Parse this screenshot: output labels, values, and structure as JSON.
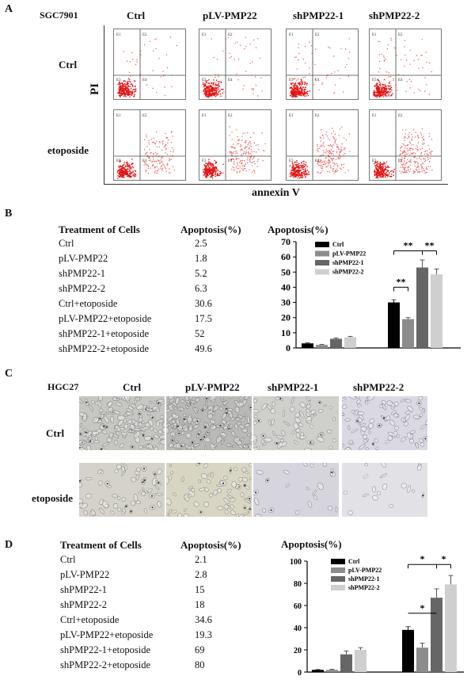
{
  "panelA": {
    "letter": "A",
    "cell_line": "SGC7901",
    "columns": [
      "Ctrl",
      "pLV-PMP22",
      "shPMP22-1",
      "shPMP22-2"
    ],
    "rows": [
      "Ctrl",
      "etoposide"
    ],
    "y_axis_label": "PI",
    "x_axis_label": "annexin V",
    "quadrant_labels": [
      "E1",
      "E2",
      "E3",
      "E4"
    ]
  },
  "panelB": {
    "letter": "B",
    "table_header": [
      "Treatment of Cells",
      "Apoptosis(%)"
    ],
    "table_rows": [
      [
        "Ctrl",
        "2.5"
      ],
      [
        "pLV-PMP22",
        "1.8"
      ],
      [
        "shPMP22-1",
        "5.2"
      ],
      [
        "shPMP22-2",
        "6.3"
      ],
      [
        "Ctrl+etoposide",
        "30.6"
      ],
      [
        "pLV-PMP22+etoposide",
        "17.5"
      ],
      [
        "shPMP22-1+etoposide",
        "52"
      ],
      [
        "shPMP22-2+etoposide",
        "49.6"
      ]
    ]
  },
  "panelC": {
    "letter": "C",
    "cell_line": "HGC27",
    "columns": [
      "Ctrl",
      "pLV-PMP22",
      "shPMP22-1",
      "shPMP22-2"
    ],
    "rows": [
      "Ctrl",
      "etoposide"
    ]
  },
  "panelD": {
    "letter": "D",
    "table_header": [
      "Treatment of Cells",
      "Apoptosis(%)"
    ],
    "table_rows": [
      [
        "Ctrl",
        "2.1"
      ],
      [
        "pLV-PMP22",
        "2.8"
      ],
      [
        "shPMP22-1",
        "15"
      ],
      [
        "shPMP22-2",
        "18"
      ],
      [
        "Ctrl+etoposide",
        "34.6"
      ],
      [
        "pLV-PMP22+etoposide",
        "19.3"
      ],
      [
        "shPMP22-1+etoposide",
        "69"
      ],
      [
        "shPMP22-2+etoposide",
        "80"
      ]
    ]
  },
  "chart_data": [
    {
      "type": "bar",
      "title": "Apoptosis(%)",
      "groups": 2,
      "series": [
        {
          "name": "Ctrl",
          "color": "#000000",
          "values": [
            3.0,
            30.0
          ],
          "errors": [
            0.4,
            1.8
          ]
        },
        {
          "name": "pLV-PMP22",
          "color": "#8c8c8c",
          "values": [
            2.0,
            19.0
          ],
          "errors": [
            0.3,
            1.0
          ]
        },
        {
          "name": "shPMP22-1",
          "color": "#666666",
          "values": [
            6.0,
            53.0
          ],
          "errors": [
            0.5,
            5.0
          ]
        },
        {
          "name": "shPMP22-2",
          "color": "#cfcfcf",
          "values": [
            7.0,
            48.5
          ],
          "errors": [
            0.6,
            3.5
          ]
        }
      ],
      "ylim": [
        0,
        70
      ],
      "yticks": [
        "0",
        "10",
        "20",
        "30",
        "40",
        "50",
        "60",
        "70"
      ],
      "yticks_values": [
        0,
        10,
        20,
        30,
        40,
        50,
        60,
        70
      ],
      "legend_position": "top-left",
      "significance": [
        {
          "label": "**",
          "from_series": 0,
          "to_series": 2,
          "group": 1,
          "level": 64
        },
        {
          "label": "**",
          "from_series": 2,
          "to_series": 3,
          "group": 1,
          "level": 64
        },
        {
          "label": "**",
          "from_series": 0,
          "to_series": 1,
          "group": 1,
          "level": 40
        }
      ]
    },
    {
      "type": "bar",
      "title": "Apoptosis(%)",
      "groups": 2,
      "series": [
        {
          "name": "Ctrl",
          "color": "#000000",
          "values": [
            2.0,
            38.0
          ],
          "errors": [
            0.4,
            3.0
          ]
        },
        {
          "name": "pLV-PMP22",
          "color": "#8c8c8c",
          "values": [
            2.0,
            22.0
          ],
          "errors": [
            0.5,
            4.0
          ]
        },
        {
          "name": "shPMP22-1",
          "color": "#666666",
          "values": [
            16.0,
            67.0
          ],
          "errors": [
            3.0,
            8.0
          ]
        },
        {
          "name": "shPMP22-2",
          "color": "#cfcfcf",
          "values": [
            20.0,
            79.0
          ],
          "errors": [
            2.0,
            8.0
          ]
        }
      ],
      "ylim": [
        0,
        100
      ],
      "yticks": [
        "0",
        "20",
        "40",
        "60",
        "80",
        "100"
      ],
      "yticks_values": [
        0,
        20,
        40,
        60,
        80,
        100
      ],
      "legend_position": "top-left",
      "significance": [
        {
          "label": "*",
          "from_series": 0,
          "to_series": 2,
          "group": 1,
          "level": 97
        },
        {
          "label": "*",
          "from_series": 2,
          "to_series": 3,
          "group": 1,
          "level": 97
        },
        {
          "label": "*",
          "from_series": 0,
          "to_series": 2,
          "group": 1,
          "level": 53,
          "no_ticks": true
        }
      ]
    }
  ]
}
